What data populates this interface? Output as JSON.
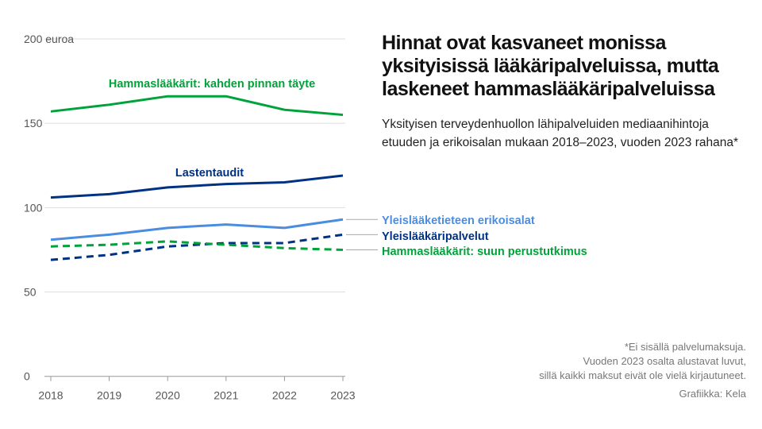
{
  "title": "Hinnat ovat kasvaneet monissa yksityisissä lääkäripalveluissa, mutta laskeneet hammaslääkäripalveluissa",
  "subtitle": "Yksityisen terveydenhuollon lähipalveluiden mediaanihintoja etuuden ja erikoisalan mukaan 2018–2023, vuoden 2023 rahana*",
  "notes": [
    "*Ei sisällä palvelumaksuja.",
    "Vuoden 2023 osalta alustavat luvut,",
    "sillä kaikki maksut eivät ole vielä kirjautuneet."
  ],
  "source": "Grafiikka: Kela",
  "chart_data": {
    "type": "line",
    "x": [
      "2018",
      "2019",
      "2020",
      "2021",
      "2022",
      "2023"
    ],
    "ylim": [
      0,
      200
    ],
    "yticks": [
      0,
      50,
      100,
      150,
      200
    ],
    "ytick_labels": [
      "0",
      "50",
      "100",
      "150",
      "200 euroa"
    ],
    "grid": true,
    "series": [
      {
        "name": "Hammaslääkärit: kahden pinnan täyte",
        "color": "#00a33a",
        "dashed": false,
        "values": [
          157,
          161,
          166,
          166,
          158,
          155
        ]
      },
      {
        "name": "Lastentaudit",
        "color": "#003283",
        "dashed": false,
        "values": [
          106,
          108,
          112,
          114,
          115,
          119
        ]
      },
      {
        "name": "Yleislääketieteen erikoisalat",
        "color": "#4a8de0",
        "dashed": false,
        "values": [
          81,
          84,
          88,
          90,
          88,
          93
        ]
      },
      {
        "name": "Yleislääkäripalvelut",
        "color": "#003283",
        "dashed": true,
        "values": [
          69,
          72,
          77,
          79,
          79,
          84
        ]
      },
      {
        "name": "Hammaslääkärit: suun perustutkimus",
        "color": "#00a33a",
        "dashed": true,
        "values": [
          77,
          78,
          80,
          78,
          76,
          75
        ]
      }
    ]
  }
}
